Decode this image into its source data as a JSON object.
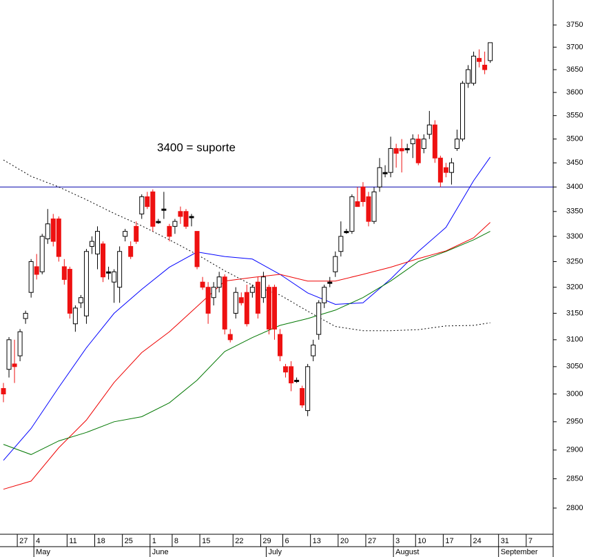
{
  "chart_data": {
    "type": "candlestick",
    "annotation": "3400 = suporte",
    "annotation_color": "#0000ee",
    "hline": 3400,
    "hline_color": "#0000aa",
    "log_scale": true,
    "ylim": [
      2756,
      3807
    ],
    "yticks": [
      2800,
      2850,
      2900,
      2950,
      3000,
      3050,
      3100,
      3150,
      3200,
      3250,
      3300,
      3350,
      3400,
      3450,
      3500,
      3550,
      3600,
      3650,
      3700,
      3750
    ],
    "up_color": "#ffffff",
    "down_color": "#ee1111",
    "doji_color": "#000000",
    "categories": [
      null,
      null,
      null,
      "27",
      null,
      null,
      "4",
      null,
      null,
      null,
      null,
      null,
      "11",
      null,
      null,
      null,
      null,
      "18",
      null,
      null,
      null,
      null,
      "25",
      null,
      null,
      null,
      null,
      "1",
      null,
      null,
      null,
      "8",
      null,
      null,
      null,
      null,
      "15",
      null,
      null,
      null,
      null,
      null,
      "22",
      null,
      null,
      null,
      null,
      "29",
      null,
      null,
      null,
      "6",
      null,
      null,
      null,
      null,
      "13",
      null,
      null,
      null,
      null,
      "20",
      null,
      null,
      null,
      null,
      "27",
      null,
      null,
      null,
      null,
      "3",
      null,
      null,
      null,
      "10",
      null,
      null,
      null,
      null,
      "17",
      null,
      null,
      null,
      null,
      "24",
      null,
      null,
      null,
      null,
      "31",
      null,
      null,
      null,
      null,
      "7",
      null,
      null,
      null
    ],
    "months": [
      null,
      null,
      null,
      null,
      null,
      null,
      "May",
      null,
      null,
      null,
      null,
      null,
      null,
      null,
      null,
      null,
      null,
      null,
      null,
      null,
      null,
      null,
      null,
      null,
      null,
      null,
      null,
      "June",
      null,
      null,
      null,
      null,
      null,
      null,
      null,
      null,
      null,
      null,
      null,
      null,
      null,
      null,
      null,
      null,
      null,
      null,
      null,
      null,
      "July",
      null,
      null,
      null,
      null,
      null,
      null,
      null,
      null,
      null,
      null,
      null,
      null,
      null,
      null,
      null,
      null,
      null,
      null,
      null,
      null,
      null,
      null,
      "August",
      null,
      null,
      null,
      null,
      null,
      null,
      null,
      null,
      null,
      null,
      null,
      null,
      null,
      null,
      null,
      null,
      null,
      null,
      "September",
      null,
      null,
      null,
      null,
      null,
      null,
      null,
      null
    ],
    "open": [
      3010,
      3045,
      3055,
      3070,
      3140,
      3190,
      3240,
      3230,
      3295,
      3335,
      3335,
      3240,
      3235,
      3130,
      3170,
      3145,
      3280,
      3265,
      3285,
      3230,
      3210,
      3200,
      3300,
      3280,
      3320,
      3345,
      3380,
      3390,
      3330,
      3355,
      3320,
      3320,
      3350,
      3350,
      3340,
      3310,
      3210,
      3200,
      3180,
      3200,
      3220,
      3110,
      3150,
      3180,
      3190,
      3190,
      3210,
      3180,
      3200,
      3200,
      3110,
      3050,
      3050,
      3025,
      3010,
      2970,
      3070,
      3110,
      3170,
      3210,
      3230,
      3270,
      3310,
      3310,
      3370,
      3400,
      3380,
      3330,
      3400,
      3430,
      3430,
      3480,
      3480,
      3480,
      3490,
      3500,
      3480,
      3510,
      3530,
      3460,
      3440,
      3430,
      3480,
      3500,
      3620,
      3620,
      3675,
      3660,
      3670,
      null,
      null,
      null,
      null,
      null,
      null,
      null,
      null,
      null,
      null
    ],
    "high": [
      3020,
      3105,
      3100,
      3120,
      3155,
      3255,
      3265,
      3305,
      3355,
      3345,
      3340,
      3255,
      3240,
      3165,
      3185,
      3275,
      3300,
      3320,
      3290,
      3240,
      3235,
      3280,
      3315,
      3290,
      3330,
      3385,
      3390,
      3395,
      3335,
      3390,
      3325,
      3335,
      3360,
      3355,
      3345,
      3310,
      3220,
      3210,
      3210,
      3230,
      3225,
      3120,
      3200,
      3190,
      3205,
      3205,
      3220,
      3230,
      3205,
      3205,
      3120,
      3055,
      3060,
      3030,
      3015,
      3055,
      3100,
      3175,
      3205,
      3220,
      3270,
      3330,
      3315,
      3385,
      3400,
      3410,
      3390,
      3400,
      3460,
      3445,
      3505,
      3490,
      3500,
      3490,
      3510,
      3510,
      3510,
      3560,
      3540,
      3465,
      3450,
      3460,
      3520,
      3625,
      3660,
      3690,
      3695,
      3690,
      3710,
      null,
      null,
      null,
      null,
      null,
      null,
      null,
      null,
      null,
      null
    ],
    "low": [
      2985,
      3030,
      3020,
      3060,
      3130,
      3180,
      3215,
      3225,
      3285,
      3280,
      3250,
      3205,
      3140,
      3115,
      3160,
      3130,
      3265,
      3235,
      3210,
      3215,
      3170,
      3170,
      3290,
      3255,
      3285,
      3335,
      3355,
      3310,
      3325,
      3335,
      3290,
      3305,
      3325,
      3315,
      3320,
      3235,
      3195,
      3130,
      3165,
      3190,
      3110,
      3095,
      3140,
      3165,
      3125,
      3180,
      3140,
      3170,
      3110,
      3100,
      3060,
      3030,
      3005,
      3020,
      2975,
      2960,
      3060,
      3100,
      3160,
      3200,
      3220,
      3260,
      3305,
      3305,
      3360,
      3360,
      3320,
      3325,
      3390,
      3420,
      3420,
      3440,
      3430,
      3470,
      3460,
      3445,
      3470,
      3500,
      3450,
      3400,
      3420,
      3405,
      3475,
      3495,
      3610,
      3615,
      3655,
      3640,
      3665,
      null,
      null,
      null,
      null,
      null,
      null,
      null,
      null,
      null,
      null
    ],
    "close": [
      3000,
      3100,
      3050,
      3115,
      3150,
      3250,
      3225,
      3300,
      3325,
      3290,
      3260,
      3215,
      3150,
      3160,
      3180,
      3270,
      3290,
      3310,
      3220,
      3230,
      3230,
      3270,
      3310,
      3260,
      3290,
      3380,
      3360,
      3320,
      3330,
      3355,
      3300,
      3330,
      3340,
      3320,
      3340,
      3240,
      3200,
      3150,
      3200,
      3220,
      3120,
      3100,
      3190,
      3170,
      3130,
      3200,
      3150,
      3220,
      3120,
      3120,
      3070,
      3040,
      3020,
      3025,
      2980,
      3050,
      3090,
      3170,
      3200,
      3210,
      3260,
      3300,
      3310,
      3380,
      3360,
      3370,
      3330,
      3390,
      3440,
      3430,
      3480,
      3470,
      3475,
      3480,
      3500,
      3450,
      3500,
      3530,
      3460,
      3410,
      3430,
      3450,
      3500,
      3620,
      3650,
      3680,
      3668,
      3650,
      3710,
      null,
      null,
      null,
      null,
      null,
      null,
      null,
      null,
      null,
      null
    ],
    "series": [
      {
        "color": "#0000ff",
        "dash": false,
        "x": [
          0,
          5,
          10,
          15,
          20,
          25,
          30,
          35,
          40,
          45,
          50,
          55,
          60,
          65,
          70,
          75,
          80,
          85,
          88
        ],
        "values": [
          2882,
          2938,
          3012,
          3085,
          3150,
          3196,
          3239,
          3269,
          3260,
          3255,
          3225,
          3189,
          3167,
          3170,
          3216,
          3270,
          3318,
          3413,
          3462
        ]
      },
      {
        "color": "#ee0000",
        "dash": false,
        "x": [
          0,
          5,
          10,
          15,
          20,
          25,
          30,
          35,
          40,
          45,
          50,
          55,
          60,
          65,
          70,
          75,
          80,
          85,
          88
        ],
        "values": [
          2832,
          2846,
          2904,
          2953,
          3021,
          3076,
          3115,
          3163,
          3212,
          3219,
          3225,
          3212,
          3212,
          3225,
          3239,
          3256,
          3271,
          3297,
          3328
        ]
      },
      {
        "color": "#007700",
        "dash": false,
        "x": [
          0,
          5,
          10,
          15,
          20,
          25,
          30,
          35,
          40,
          45,
          50,
          55,
          60,
          65,
          70,
          75,
          80,
          85,
          88
        ],
        "values": [
          2910,
          2892,
          2916,
          2931,
          2950,
          2959,
          2984,
          3025,
          3078,
          3104,
          3127,
          3140,
          3156,
          3180,
          3212,
          3250,
          3270,
          3293,
          3310
        ]
      },
      {
        "color": "#000000",
        "dash": true,
        "x": [
          0,
          5,
          10,
          15,
          20,
          25,
          30,
          35,
          40,
          45,
          50,
          55,
          60,
          65,
          70,
          75,
          80,
          85,
          88
        ],
        "values": [
          3456,
          3422,
          3400,
          3374,
          3346,
          3321,
          3293,
          3264,
          3232,
          3204,
          3185,
          3154,
          3125,
          3117,
          3117,
          3119,
          3126,
          3127,
          3132
        ]
      }
    ]
  }
}
